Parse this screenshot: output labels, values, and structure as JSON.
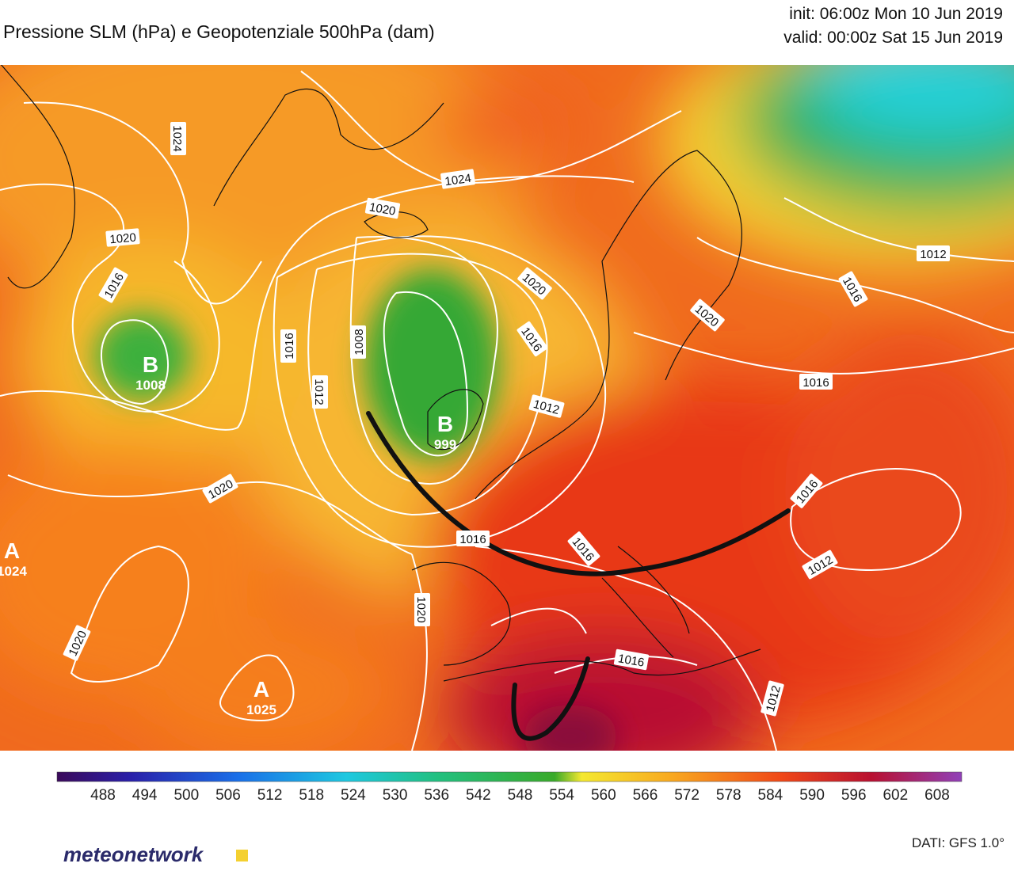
{
  "header": {
    "title": "Pressione SLM (hPa) e Geopotenziale 500hPa (dam)",
    "init": "init: 06:00z Mon 10 Jun 2019",
    "valid": "valid: 00:00z Sat 15 Jun 2019"
  },
  "map": {
    "isobar_labels": [
      1024,
      1024,
      1020,
      1020,
      1016,
      1016,
      1008,
      1012,
      1020,
      1016,
      1020,
      1012,
      1016,
      1012,
      1016,
      1020,
      1016,
      1016,
      1016,
      1012,
      1020,
      1020,
      1016,
      1012
    ],
    "centers": [
      {
        "letter": "B",
        "value": 1008
      },
      {
        "letter": "B",
        "value": 999
      },
      {
        "letter": "A",
        "value": 1025
      },
      {
        "letter": "A",
        "value": 1024
      }
    ]
  },
  "colorbar": {
    "ticks": [
      488,
      494,
      500,
      506,
      512,
      518,
      524,
      530,
      536,
      542,
      548,
      554,
      560,
      566,
      572,
      578,
      584,
      590,
      596,
      602,
      608
    ]
  },
  "footer": {
    "logo": "meteonetwork",
    "source": "DATI:  GFS  1.0°"
  }
}
